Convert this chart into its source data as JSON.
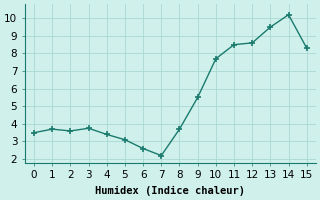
{
  "x": [
    0,
    1,
    2,
    3,
    4,
    5,
    6,
    7,
    8,
    9,
    10,
    11,
    12,
    13,
    14,
    15
  ],
  "y": [
    3.5,
    3.7,
    3.6,
    3.75,
    3.4,
    3.1,
    2.6,
    2.2,
    3.7,
    5.5,
    7.7,
    8.5,
    8.6,
    9.5,
    10.2,
    8.3
  ],
  "line_color": "#1a7a6e",
  "marker": "+",
  "marker_size": 4,
  "marker_lw": 1.2,
  "bg_color": "#cff0eb",
  "grid_color": "#aad8d3",
  "xlabel": "Humidex (Indice chaleur)",
  "xlabel_fontsize": 7.5,
  "tick_fontsize": 7.5,
  "xlim": [
    -0.5,
    15.5
  ],
  "ylim": [
    1.8,
    10.8
  ],
  "yticks": [
    2,
    3,
    4,
    5,
    6,
    7,
    8,
    9,
    10
  ],
  "xticks": [
    0,
    1,
    2,
    3,
    4,
    5,
    6,
    7,
    8,
    9,
    10,
    11,
    12,
    13,
    14,
    15
  ],
  "linewidth": 1.0
}
